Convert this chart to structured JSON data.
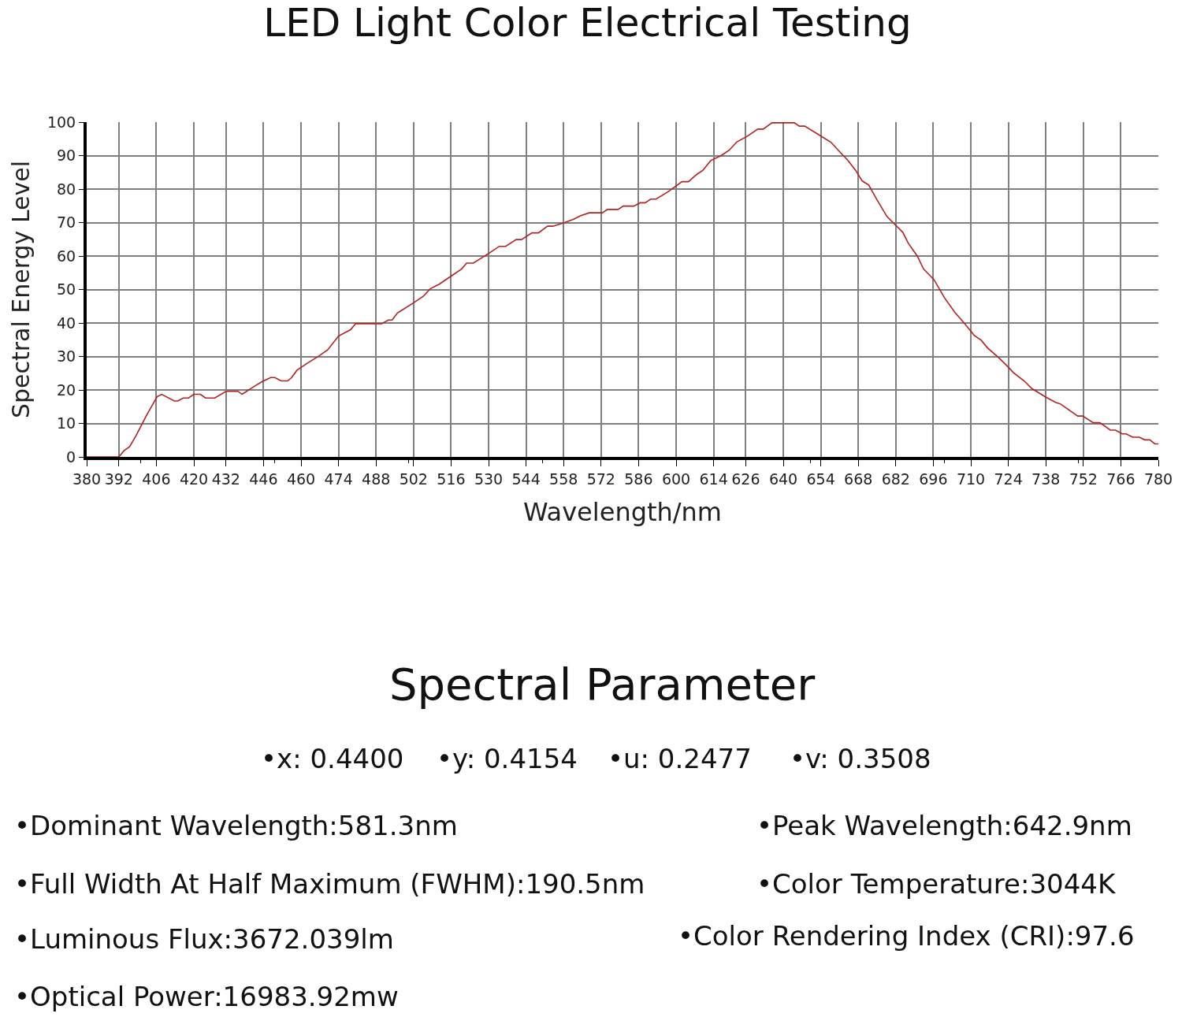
{
  "chart_data": {
    "type": "line",
    "title": "LED Light Color Electrical Testing",
    "xlabel": "Wavelength/nm",
    "ylabel": "Spectral Energy Level",
    "x": [
      380,
      392,
      394,
      396,
      398.4,
      402.4,
      406.3,
      408,
      412.7,
      414,
      416,
      418,
      420,
      422.4,
      424.4,
      427.8,
      432,
      436.5,
      438,
      442,
      445.3,
      448.7,
      450.2,
      452.6,
      455,
      456.5,
      458.5,
      462,
      466.8,
      470,
      474,
      478.5,
      480.4,
      490.1,
      492.6,
      494,
      496,
      501.8,
      505.7,
      508.2,
      511.6,
      516,
      519.9,
      521.8,
      524.3,
      530.1,
      534,
      536.4,
      540.3,
      542.3,
      546.2,
      548.6,
      552,
      554,
      558.4,
      561.8,
      564.2,
      567.6,
      572.5,
      574.4,
      578.3,
      580.3,
      584.2,
      586.6,
      588.5,
      590.5,
      592.5,
      596.8,
      602.2,
      604.6,
      607.6,
      610,
      612.9,
      616.8,
      619.8,
      622.7,
      626.6,
      630.5,
      632.5,
      635.8,
      644.1,
      646,
      648,
      654.3,
      657.8,
      661.2,
      664.1,
      667,
      669.5,
      671.9,
      674.9,
      678.7,
      682.2,
      684.6,
      686.6,
      690,
      692.4,
      696.3,
      700.2,
      704.1,
      707.5,
      711.4,
      713.8,
      716.3,
      720.2,
      724,
      726,
      729.9,
      732.8,
      737.7,
      741.6,
      743.5,
      749.9,
      751.8,
      755.7,
      758.2,
      762.1,
      764,
      766.5,
      768,
      770.4,
      772.9,
      774.9,
      776.8,
      778.7,
      780
    ],
    "series": [
      {
        "color": "#b22222",
        "values": [
          0,
          0,
          1.9,
          3,
          6.3,
          12.5,
          18,
          18.7,
          16.7,
          16.7,
          17.6,
          17.6,
          18.7,
          18.7,
          17.6,
          17.6,
          19.6,
          19.6,
          18.7,
          20.8,
          22.4,
          23.7,
          23.7,
          22.7,
          22.7,
          23.7,
          25.9,
          27.8,
          30.2,
          32,
          36.1,
          38,
          39.8,
          39.8,
          40.9,
          40.9,
          43,
          45.9,
          48,
          50.2,
          51.6,
          54,
          56.1,
          57.9,
          57.9,
          60.8,
          62.9,
          62.9,
          64.9,
          64.9,
          66.9,
          66.9,
          68.9,
          68.9,
          70,
          71,
          72,
          72.9,
          72.9,
          73.9,
          73.9,
          74.9,
          74.9,
          75.9,
          75.9,
          77,
          77,
          79.1,
          82.2,
          82.2,
          84.3,
          85.6,
          88.5,
          90,
          91.6,
          94.1,
          95.8,
          97.9,
          97.9,
          99.8,
          99.8,
          98.8,
          98.8,
          95.7,
          94,
          91,
          88.6,
          85.6,
          82.4,
          81.2,
          76.9,
          71.8,
          69,
          67.1,
          63.9,
          60,
          56.1,
          52.9,
          47.5,
          43.1,
          40,
          36.2,
          34.9,
          32.5,
          29.8,
          26.8,
          25.1,
          22.7,
          20.4,
          18,
          16.3,
          15.8,
          12.2,
          12.2,
          10.2,
          10.2,
          8,
          8,
          6.9,
          6.9,
          5.9,
          5.9,
          5.1,
          5.1,
          3.9,
          3.9
        ]
      }
    ],
    "xlim": [
      380,
      780
    ],
    "xticks": [
      380,
      392,
      406,
      420,
      432,
      446,
      460,
      474,
      488,
      502,
      516,
      530,
      544,
      558,
      572,
      586,
      600,
      614,
      626,
      640,
      654,
      668,
      682,
      696,
      710,
      724,
      738,
      752,
      766,
      780
    ],
    "ylim": [
      0,
      100
    ],
    "yticks": [
      0,
      10,
      20,
      30,
      40,
      50,
      60,
      70,
      80,
      90,
      100
    ],
    "grid": true,
    "marker": "none",
    "line_style": "solid",
    "annotations": [
      "Spectral Parameter",
      "•x: 0.4400",
      "•y: 0.4154",
      "•u: 0.2477",
      "•v: 0.3508",
      "•Dominant Wavelength:581.3nm",
      "•Peak Wavelength:642.9nm",
      "•Full Width At Half Maximum (FWHM):190.5nm",
      "•Color Temperature:3044K",
      "•Luminous Flux:3672.039lm",
      "•Color Rendering Index (CRI):97.6",
      "•Optical Power:16983.92mw"
    ]
  }
}
